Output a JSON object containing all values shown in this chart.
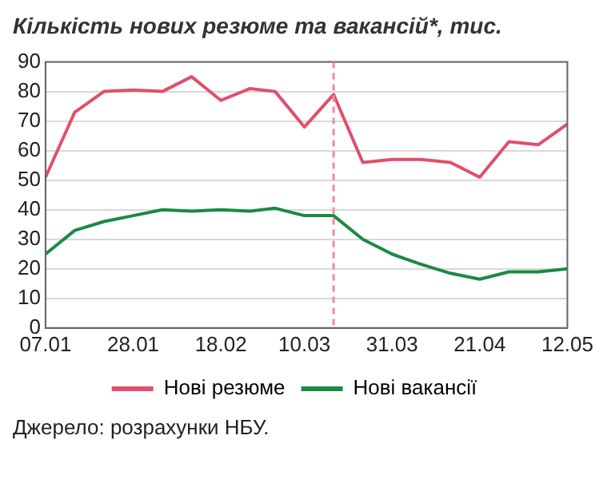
{
  "chart_data": {
    "type": "line",
    "title": "Кількість нових резюме та вакансій*, тис.",
    "x": [
      "--01-07",
      "--01-14",
      "--01-21",
      "--01-28",
      "--02-04",
      "--02-11",
      "--02-18",
      "--02-25",
      "--03-03",
      "--03-10",
      "--03-17",
      "--03-24",
      "--03-31",
      "--04-07",
      "--04-14",
      "--04-21",
      "--04-28",
      "--05-05",
      "--05-12"
    ],
    "series": [
      {
        "name": "Нові резюме",
        "color": "#e0506a",
        "values": [
          51,
          73,
          80,
          80.5,
          80,
          85,
          77,
          81,
          80,
          68,
          79,
          56,
          57,
          57,
          56,
          51,
          63,
          62,
          69
        ]
      },
      {
        "name": "Нові вакансії",
        "color": "#1a8a45",
        "values": [
          25,
          33,
          36,
          38,
          40,
          39.5,
          40,
          39.5,
          40.5,
          38,
          38,
          30,
          25,
          21.5,
          18.5,
          16.5,
          19,
          19,
          20
        ]
      }
    ],
    "xlim": [
      "--01-07",
      "--05-12"
    ],
    "xticks": [
      {
        "value": "--01-07",
        "label": "07.01"
      },
      {
        "value": "--01-28",
        "label": "28.01"
      },
      {
        "value": "--02-18",
        "label": "18.02"
      },
      {
        "value": "--03-10",
        "label": "10.03"
      },
      {
        "value": "--03-31",
        "label": "31.03"
      },
      {
        "value": "--04-21",
        "label": "21.04"
      },
      {
        "value": "--05-12",
        "label": "12.05"
      }
    ],
    "ylim": [
      0,
      90
    ],
    "yticks": [
      0,
      10,
      20,
      30,
      40,
      50,
      60,
      70,
      80,
      90
    ],
    "ref_lines": [
      {
        "axis": "x",
        "value": "--03-17",
        "color": "#f08aa0",
        "line_style": "dashed"
      }
    ],
    "grid": "y",
    "legend": "bottom",
    "marker": "none",
    "line_style": "solid",
    "annotations": [
      "Джерело: розрахунки НБУ."
    ]
  }
}
